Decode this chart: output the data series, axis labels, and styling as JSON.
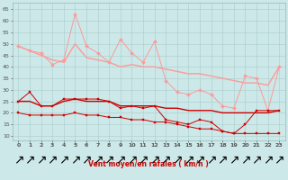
{
  "x": [
    0,
    1,
    2,
    3,
    4,
    5,
    6,
    7,
    8,
    9,
    10,
    11,
    12,
    13,
    14,
    15,
    16,
    17,
    18,
    19,
    20,
    21,
    22,
    23
  ],
  "line1": [
    49,
    47,
    46,
    41,
    43,
    63,
    49,
    46,
    42,
    52,
    46,
    42,
    51,
    34,
    29,
    28,
    30,
    28,
    23,
    22,
    36,
    35,
    21,
    40
  ],
  "line2": [
    49,
    47,
    45,
    43,
    42,
    50,
    44,
    43,
    42,
    40,
    41,
    40,
    40,
    39,
    38,
    37,
    37,
    36,
    35,
    34,
    33,
    33,
    32,
    40
  ],
  "line3": [
    25,
    29,
    23,
    23,
    26,
    26,
    26,
    26,
    25,
    22,
    23,
    22,
    23,
    17,
    16,
    15,
    17,
    16,
    12,
    11,
    15,
    21,
    21,
    21
  ],
  "line4": [
    25,
    25,
    23,
    23,
    25,
    26,
    25,
    25,
    25,
    23,
    23,
    23,
    23,
    22,
    22,
    21,
    21,
    21,
    20,
    20,
    20,
    20,
    20,
    21
  ],
  "line5": [
    20,
    19,
    19,
    19,
    19,
    20,
    19,
    19,
    18,
    18,
    17,
    17,
    16,
    16,
    15,
    14,
    13,
    13,
    12,
    11,
    11,
    11,
    11,
    11
  ],
  "color_light": "#ff9999",
  "color_dark": "#cc0000",
  "background": "#cce8e8",
  "grid_color": "#aacccc",
  "xlabel": "Vent moyen/en rafales ( km/h )",
  "ylim": [
    8,
    68
  ],
  "yticks": [
    10,
    15,
    20,
    25,
    30,
    35,
    40,
    45,
    50,
    55,
    60,
    65
  ],
  "xticks": [
    0,
    1,
    2,
    3,
    4,
    5,
    6,
    7,
    8,
    9,
    10,
    11,
    12,
    13,
    14,
    15,
    16,
    17,
    18,
    19,
    20,
    21,
    22,
    23
  ],
  "arrow_char": "↗"
}
